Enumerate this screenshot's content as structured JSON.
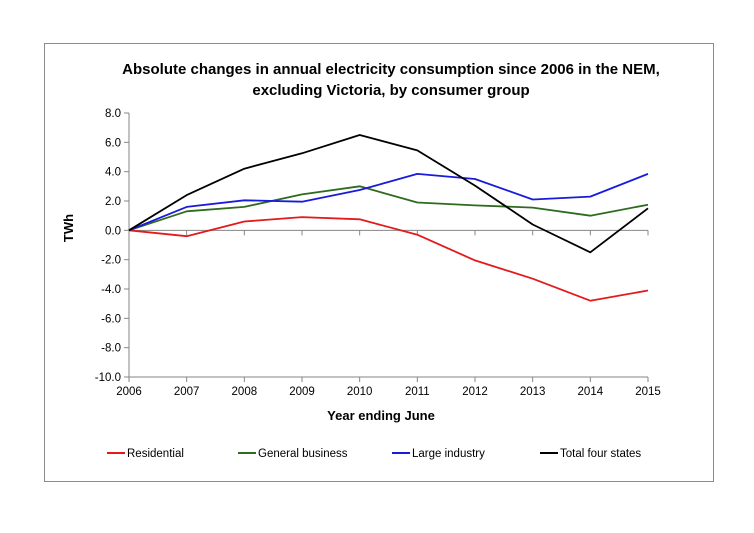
{
  "chart_data": {
    "type": "line",
    "title_lines": [
      "Absolute changes in annual electricity consumption since 2006 in the  NEM,",
      "excluding Victoria, by consumer group"
    ],
    "xlabel": "Year ending June",
    "ylabel": "TWh",
    "x": [
      "2006",
      "2007",
      "2008",
      "2009",
      "2010",
      "2011",
      "2012",
      "2013",
      "2014",
      "2015"
    ],
    "ylim": [
      -10,
      8
    ],
    "yticks": [
      "8.0",
      "6.0",
      "4.0",
      "2.0",
      "0.0",
      "-2.0",
      "-4.0",
      "-6.0",
      "-8.0",
      "-10.0"
    ],
    "ytick_values": [
      8,
      6,
      4,
      2,
      0,
      -2,
      -4,
      -6,
      -8,
      -10
    ],
    "grid": false,
    "legend_position": "bottom",
    "series": [
      {
        "name": "Residential",
        "color": "#e31a1c",
        "values": [
          0.0,
          -0.4,
          0.6,
          0.9,
          0.75,
          -0.3,
          -2.05,
          -3.3,
          -4.8,
          -4.1
        ]
      },
      {
        "name": "General business",
        "color": "#2e6b1f",
        "values": [
          0.0,
          1.3,
          1.6,
          2.45,
          3.0,
          1.9,
          1.7,
          1.55,
          1.0,
          1.75
        ]
      },
      {
        "name": "Large industry",
        "color": "#1a1adc",
        "values": [
          0.0,
          1.6,
          2.05,
          1.95,
          2.75,
          3.85,
          3.5,
          2.1,
          2.3,
          3.85
        ]
      },
      {
        "name": "Total four states",
        "color": "#000000",
        "values": [
          0.0,
          2.4,
          4.2,
          5.25,
          6.5,
          5.45,
          3.05,
          0.4,
          -1.5,
          1.5
        ]
      }
    ]
  }
}
